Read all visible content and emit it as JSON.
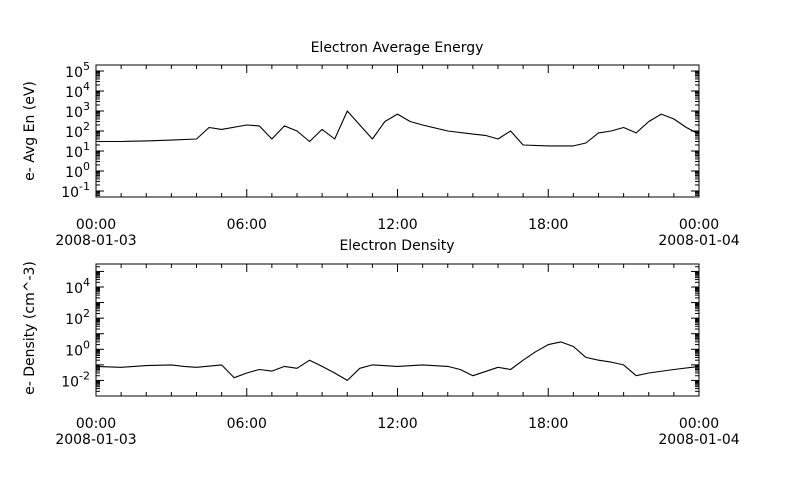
{
  "chart_data": [
    {
      "type": "line",
      "title": "Electron Average Energy",
      "ylabel": "e- Avg En (eV)",
      "y_scale": "log",
      "ylim": [
        0.05,
        200000
      ],
      "y_ticks": [
        {
          "value": 0.1,
          "base": "10",
          "exp": "-1"
        },
        {
          "value": 1,
          "base": "10",
          "exp": "0"
        },
        {
          "value": 10,
          "base": "10",
          "exp": "1"
        },
        {
          "value": 100,
          "base": "10",
          "exp": "2"
        },
        {
          "value": 1000,
          "base": "10",
          "exp": "3"
        },
        {
          "value": 10000,
          "base": "10",
          "exp": "4"
        },
        {
          "value": 100000,
          "base": "10",
          "exp": "5"
        }
      ],
      "x_ticks": [
        {
          "time": "00:00",
          "date": "2008-01-03"
        },
        {
          "time": "06:00",
          "date": ""
        },
        {
          "time": "12:00",
          "date": ""
        },
        {
          "time": "18:00",
          "date": ""
        },
        {
          "time": "00:00",
          "date": "2008-01-04"
        }
      ],
      "grid": false,
      "series": [
        {
          "color": "#000000",
          "x": [
            "2008-01-03T00:00",
            "2008-01-03T01:00",
            "2008-01-03T02:00",
            "2008-01-03T03:00",
            "2008-01-03T04:00",
            "2008-01-03T04:30",
            "2008-01-03T05:00",
            "2008-01-03T06:00",
            "2008-01-03T06:30",
            "2008-01-03T07:00",
            "2008-01-03T07:30",
            "2008-01-03T08:00",
            "2008-01-03T08:30",
            "2008-01-03T09:00",
            "2008-01-03T09:30",
            "2008-01-03T10:00",
            "2008-01-03T10:30",
            "2008-01-03T11:00",
            "2008-01-03T11:30",
            "2008-01-03T12:00",
            "2008-01-03T12:30",
            "2008-01-03T13:00",
            "2008-01-03T14:00",
            "2008-01-03T15:00",
            "2008-01-03T15:30",
            "2008-01-03T16:00",
            "2008-01-03T16:30",
            "2008-01-03T17:00",
            "2008-01-03T18:00",
            "2008-01-03T19:00",
            "2008-01-03T19:30",
            "2008-01-03T20:00",
            "2008-01-03T20:30",
            "2008-01-03T21:00",
            "2008-01-03T21:30",
            "2008-01-03T22:00",
            "2008-01-03T22:30",
            "2008-01-03T23:00",
            "2008-01-03T23:30",
            "2008-01-04T00:00"
          ],
          "y": [
            30,
            30,
            32,
            35,
            40,
            150,
            120,
            200,
            180,
            40,
            180,
            100,
            30,
            120,
            40,
            1000,
            200,
            40,
            300,
            700,
            300,
            200,
            100,
            70,
            60,
            40,
            100,
            20,
            18,
            18,
            25,
            80,
            100,
            150,
            80,
            300,
            700,
            400,
            150,
            70
          ]
        }
      ]
    },
    {
      "type": "line",
      "title": "Electron Density",
      "ylabel": "e- Density (cm^-3)",
      "y_scale": "log",
      "ylim": [
        0.001,
        300000
      ],
      "y_ticks": [
        {
          "value": 0.01,
          "base": "10",
          "exp": "-2"
        },
        {
          "value": 1,
          "base": "10",
          "exp": "0"
        },
        {
          "value": 100,
          "base": "10",
          "exp": "2"
        },
        {
          "value": 10000,
          "base": "10",
          "exp": "4"
        }
      ],
      "x_ticks": [
        {
          "time": "00:00",
          "date": "2008-01-03"
        },
        {
          "time": "06:00",
          "date": ""
        },
        {
          "time": "12:00",
          "date": ""
        },
        {
          "time": "18:00",
          "date": ""
        },
        {
          "time": "00:00",
          "date": "2008-01-04"
        }
      ],
      "grid": false,
      "series": [
        {
          "color": "#000000",
          "x": [
            "2008-01-03T00:00",
            "2008-01-03T01:00",
            "2008-01-03T02:00",
            "2008-01-03T03:00",
            "2008-01-03T03:30",
            "2008-01-03T04:00",
            "2008-01-03T05:00",
            "2008-01-03T05:30",
            "2008-01-03T06:00",
            "2008-01-03T06:30",
            "2008-01-03T07:00",
            "2008-01-03T07:30",
            "2008-01-03T08:00",
            "2008-01-03T08:30",
            "2008-01-03T09:00",
            "2008-01-03T09:30",
            "2008-01-03T10:00",
            "2008-01-03T10:30",
            "2008-01-03T11:00",
            "2008-01-03T12:00",
            "2008-01-03T13:00",
            "2008-01-03T14:00",
            "2008-01-03T14:30",
            "2008-01-03T15:00",
            "2008-01-03T16:00",
            "2008-01-03T16:30",
            "2008-01-03T17:00",
            "2008-01-03T17:30",
            "2008-01-03T18:00",
            "2008-01-03T18:30",
            "2008-01-03T19:00",
            "2008-01-03T19:30",
            "2008-01-03T20:00",
            "2008-01-03T20:30",
            "2008-01-03T21:00",
            "2008-01-03T21:30",
            "2008-01-03T22:00",
            "2008-01-03T23:00",
            "2008-01-04T00:00"
          ],
          "y": [
            0.08,
            0.07,
            0.09,
            0.1,
            0.08,
            0.07,
            0.1,
            0.015,
            0.03,
            0.05,
            0.04,
            0.08,
            0.06,
            0.2,
            0.08,
            0.03,
            0.01,
            0.06,
            0.1,
            0.08,
            0.1,
            0.08,
            0.05,
            0.02,
            0.07,
            0.05,
            0.2,
            0.7,
            2,
            3,
            1.5,
            0.3,
            0.2,
            0.15,
            0.1,
            0.02,
            0.03,
            0.05,
            0.08
          ]
        }
      ]
    }
  ]
}
